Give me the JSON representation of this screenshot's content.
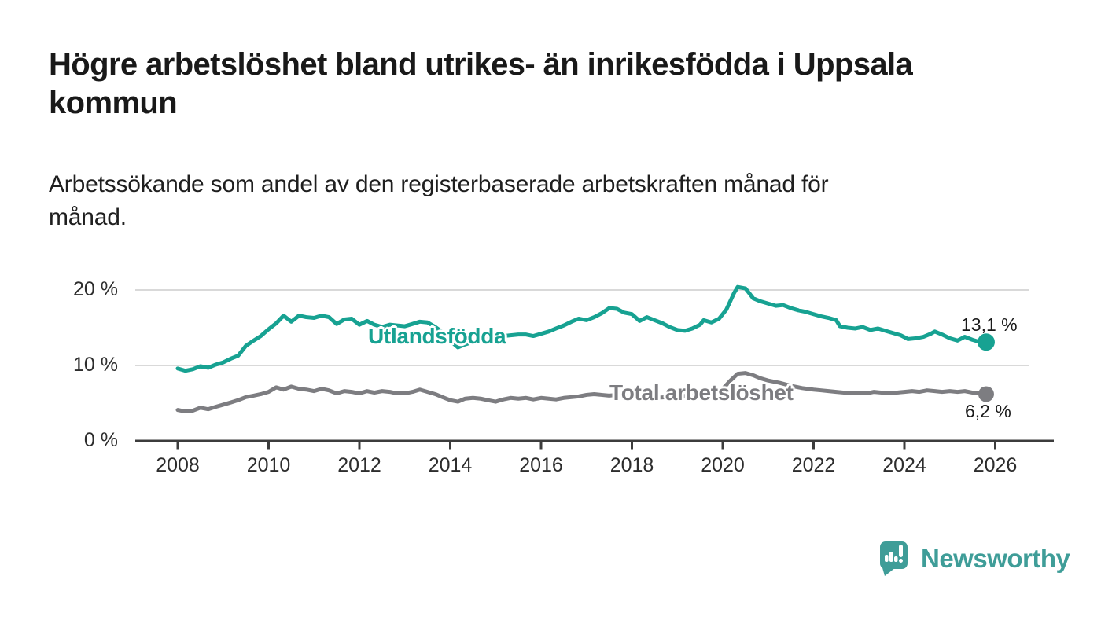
{
  "title": {
    "full": "Högre arbetslöshet bland utrikes- än inrikesfödda i Uppsala kommun",
    "lines": [
      "Högre arbetslöshet bland utrikes- än inrikesfödda i Uppsala",
      "kommun"
    ]
  },
  "subtitle": {
    "full": "Arbetssökande som andel av den registerbaserade arbetskraften månad för månad.",
    "lines": [
      "Arbetssökande som andel av den registerbaserade arbetskraften månad för",
      "månad."
    ]
  },
  "branding": {
    "logo_text": "Newsworthy",
    "logo_icon": "newsworthy-speech-bubble-bar-chart-icon",
    "brand_color": "#3f9d98"
  },
  "colors": {
    "series_foreign_born": "#17a292",
    "series_total": "#7d7d81",
    "gridline": "#d9d9d9",
    "axis": "#3c3c3c",
    "value_text": "#1a1a1a"
  },
  "chart_data": {
    "type": "line",
    "unit": "%",
    "grid": "horizontal-only",
    "legend": "inline-labels-on-lines",
    "xlim": [
      2007.1,
      2027.3
    ],
    "ylim": [
      0,
      21
    ],
    "x_ticks": [
      2008,
      2010,
      2012,
      2014,
      2016,
      2018,
      2020,
      2022,
      2024,
      2026
    ],
    "y_ticks": [
      {
        "label": "0 %",
        "value": 0
      },
      {
        "label": "10 %",
        "value": 10
      },
      {
        "label": "20 %",
        "value": 20
      }
    ],
    "series": [
      {
        "name": "Utlandsfödda",
        "label": "Utlandsfödda",
        "color": "#17a292",
        "end_value": 13.1,
        "end_label": "13,1 %",
        "points": [
          [
            2008.0,
            9.6
          ],
          [
            2008.17,
            9.3
          ],
          [
            2008.33,
            9.5
          ],
          [
            2008.5,
            9.9
          ],
          [
            2008.67,
            9.7
          ],
          [
            2008.83,
            10.1
          ],
          [
            2009.0,
            10.4
          ],
          [
            2009.17,
            10.9
          ],
          [
            2009.33,
            11.3
          ],
          [
            2009.5,
            12.6
          ],
          [
            2009.67,
            13.3
          ],
          [
            2009.83,
            13.9
          ],
          [
            2010.0,
            14.8
          ],
          [
            2010.17,
            15.6
          ],
          [
            2010.33,
            16.6
          ],
          [
            2010.5,
            15.8
          ],
          [
            2010.67,
            16.6
          ],
          [
            2010.83,
            16.4
          ],
          [
            2011.0,
            16.3
          ],
          [
            2011.17,
            16.6
          ],
          [
            2011.33,
            16.4
          ],
          [
            2011.5,
            15.5
          ],
          [
            2011.67,
            16.1
          ],
          [
            2011.83,
            16.2
          ],
          [
            2012.0,
            15.4
          ],
          [
            2012.17,
            15.9
          ],
          [
            2012.33,
            15.4
          ],
          [
            2012.5,
            15.1
          ],
          [
            2012.67,
            15.4
          ],
          [
            2012.83,
            15.3
          ],
          [
            2013.0,
            15.2
          ],
          [
            2013.17,
            15.5
          ],
          [
            2013.33,
            15.8
          ],
          [
            2013.5,
            15.7
          ],
          [
            2013.67,
            15.1
          ],
          [
            2013.83,
            14.4
          ],
          [
            2014.0,
            13.3
          ],
          [
            2014.17,
            12.4
          ],
          [
            2014.33,
            12.8
          ],
          [
            2014.5,
            13.1
          ],
          [
            2014.67,
            13.4
          ],
          [
            2014.83,
            13.6
          ],
          [
            2015.0,
            13.7
          ],
          [
            2015.17,
            13.9
          ],
          [
            2015.33,
            14.0
          ],
          [
            2015.5,
            14.1
          ],
          [
            2015.67,
            14.1
          ],
          [
            2015.83,
            13.9
          ],
          [
            2016.0,
            14.2
          ],
          [
            2016.17,
            14.5
          ],
          [
            2016.33,
            14.9
          ],
          [
            2016.5,
            15.3
          ],
          [
            2016.67,
            15.8
          ],
          [
            2016.83,
            16.2
          ],
          [
            2017.0,
            16.0
          ],
          [
            2017.17,
            16.4
          ],
          [
            2017.33,
            16.9
          ],
          [
            2017.5,
            17.6
          ],
          [
            2017.67,
            17.5
          ],
          [
            2017.83,
            17.0
          ],
          [
            2018.0,
            16.8
          ],
          [
            2018.17,
            15.9
          ],
          [
            2018.33,
            16.4
          ],
          [
            2018.5,
            16.0
          ],
          [
            2018.67,
            15.6
          ],
          [
            2018.83,
            15.1
          ],
          [
            2019.0,
            14.7
          ],
          [
            2019.17,
            14.6
          ],
          [
            2019.33,
            14.9
          ],
          [
            2019.5,
            15.4
          ],
          [
            2019.58,
            16.0
          ],
          [
            2019.75,
            15.7
          ],
          [
            2019.92,
            16.2
          ],
          [
            2020.08,
            17.4
          ],
          [
            2020.25,
            19.6
          ],
          [
            2020.33,
            20.4
          ],
          [
            2020.5,
            20.2
          ],
          [
            2020.58,
            19.6
          ],
          [
            2020.67,
            18.9
          ],
          [
            2020.83,
            18.5
          ],
          [
            2021.0,
            18.2
          ],
          [
            2021.17,
            17.9
          ],
          [
            2021.33,
            18.0
          ],
          [
            2021.5,
            17.6
          ],
          [
            2021.67,
            17.3
          ],
          [
            2021.83,
            17.1
          ],
          [
            2022.0,
            16.8
          ],
          [
            2022.17,
            16.5
          ],
          [
            2022.33,
            16.3
          ],
          [
            2022.5,
            16.0
          ],
          [
            2022.58,
            15.2
          ],
          [
            2022.75,
            15.0
          ],
          [
            2022.92,
            14.9
          ],
          [
            2023.08,
            15.1
          ],
          [
            2023.25,
            14.7
          ],
          [
            2023.42,
            14.9
          ],
          [
            2023.58,
            14.6
          ],
          [
            2023.75,
            14.3
          ],
          [
            2023.92,
            14.0
          ],
          [
            2024.08,
            13.5
          ],
          [
            2024.25,
            13.6
          ],
          [
            2024.42,
            13.8
          ],
          [
            2024.58,
            14.2
          ],
          [
            2024.67,
            14.5
          ],
          [
            2024.83,
            14.1
          ],
          [
            2025.0,
            13.6
          ],
          [
            2025.17,
            13.3
          ],
          [
            2025.33,
            13.8
          ],
          [
            2025.5,
            13.4
          ],
          [
            2025.67,
            13.1
          ],
          [
            2025.8,
            13.1
          ]
        ]
      },
      {
        "name": "Total arbetslöshet",
        "label": "Total arbetslöshet",
        "color": "#7d7d81",
        "end_value": 6.2,
        "end_label": "6,2 %",
        "points": [
          [
            2008.0,
            4.1
          ],
          [
            2008.17,
            3.9
          ],
          [
            2008.33,
            4.0
          ],
          [
            2008.5,
            4.4
          ],
          [
            2008.67,
            4.2
          ],
          [
            2008.83,
            4.5
          ],
          [
            2009.0,
            4.8
          ],
          [
            2009.17,
            5.1
          ],
          [
            2009.33,
            5.4
          ],
          [
            2009.5,
            5.8
          ],
          [
            2009.67,
            6.0
          ],
          [
            2009.83,
            6.2
          ],
          [
            2010.0,
            6.5
          ],
          [
            2010.17,
            7.1
          ],
          [
            2010.33,
            6.8
          ],
          [
            2010.5,
            7.2
          ],
          [
            2010.67,
            6.9
          ],
          [
            2010.83,
            6.8
          ],
          [
            2011.0,
            6.6
          ],
          [
            2011.17,
            6.9
          ],
          [
            2011.33,
            6.7
          ],
          [
            2011.5,
            6.3
          ],
          [
            2011.67,
            6.6
          ],
          [
            2011.83,
            6.5
          ],
          [
            2012.0,
            6.3
          ],
          [
            2012.17,
            6.6
          ],
          [
            2012.33,
            6.4
          ],
          [
            2012.5,
            6.6
          ],
          [
            2012.67,
            6.5
          ],
          [
            2012.83,
            6.3
          ],
          [
            2013.0,
            6.3
          ],
          [
            2013.17,
            6.5
          ],
          [
            2013.33,
            6.8
          ],
          [
            2013.5,
            6.5
          ],
          [
            2013.67,
            6.2
          ],
          [
            2013.83,
            5.8
          ],
          [
            2014.0,
            5.4
          ],
          [
            2014.17,
            5.2
          ],
          [
            2014.33,
            5.6
          ],
          [
            2014.5,
            5.7
          ],
          [
            2014.67,
            5.6
          ],
          [
            2014.83,
            5.4
          ],
          [
            2015.0,
            5.2
          ],
          [
            2015.17,
            5.5
          ],
          [
            2015.33,
            5.7
          ],
          [
            2015.5,
            5.6
          ],
          [
            2015.67,
            5.7
          ],
          [
            2015.83,
            5.5
          ],
          [
            2016.0,
            5.7
          ],
          [
            2016.17,
            5.6
          ],
          [
            2016.33,
            5.5
          ],
          [
            2016.5,
            5.7
          ],
          [
            2016.67,
            5.8
          ],
          [
            2016.83,
            5.9
          ],
          [
            2017.0,
            6.1
          ],
          [
            2017.17,
            6.2
          ],
          [
            2017.33,
            6.1
          ],
          [
            2017.5,
            6.0
          ],
          [
            2017.67,
            6.1
          ],
          [
            2017.83,
            6.0
          ],
          [
            2018.0,
            5.9
          ],
          [
            2018.25,
            5.8
          ],
          [
            2018.5,
            5.7
          ],
          [
            2018.75,
            5.8
          ],
          [
            2019.0,
            5.9
          ],
          [
            2019.25,
            6.0
          ],
          [
            2019.5,
            6.2
          ],
          [
            2019.75,
            6.3
          ],
          [
            2020.0,
            6.9
          ],
          [
            2020.17,
            8.0
          ],
          [
            2020.33,
            8.9
          ],
          [
            2020.5,
            9.0
          ],
          [
            2020.67,
            8.7
          ],
          [
            2020.83,
            8.3
          ],
          [
            2021.0,
            8.0
          ],
          [
            2021.25,
            7.7
          ],
          [
            2021.5,
            7.3
          ],
          [
            2021.75,
            7.0
          ],
          [
            2022.0,
            6.8
          ],
          [
            2022.17,
            6.7
          ],
          [
            2022.33,
            6.6
          ],
          [
            2022.5,
            6.5
          ],
          [
            2022.67,
            6.4
          ],
          [
            2022.83,
            6.3
          ],
          [
            2023.0,
            6.4
          ],
          [
            2023.17,
            6.3
          ],
          [
            2023.33,
            6.5
          ],
          [
            2023.5,
            6.4
          ],
          [
            2023.67,
            6.3
          ],
          [
            2023.83,
            6.4
          ],
          [
            2024.0,
            6.5
          ],
          [
            2024.17,
            6.6
          ],
          [
            2024.33,
            6.5
          ],
          [
            2024.5,
            6.7
          ],
          [
            2024.67,
            6.6
          ],
          [
            2024.83,
            6.5
          ],
          [
            2025.0,
            6.6
          ],
          [
            2025.17,
            6.5
          ],
          [
            2025.33,
            6.6
          ],
          [
            2025.5,
            6.4
          ],
          [
            2025.67,
            6.3
          ],
          [
            2025.8,
            6.2
          ]
        ]
      }
    ]
  }
}
